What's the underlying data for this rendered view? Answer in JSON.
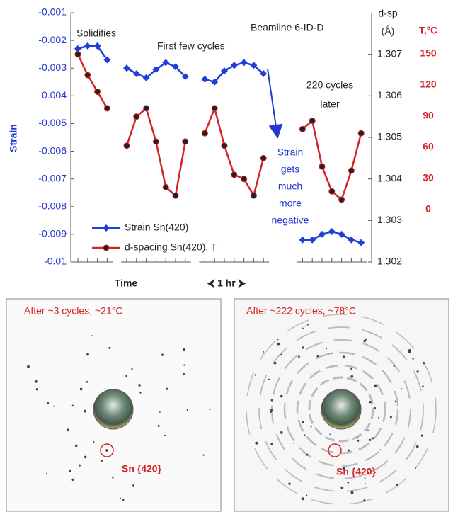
{
  "chart_data": {
    "type": "line",
    "categories": [
      null,
      null,
      null,
      null,
      null,
      null,
      null,
      null,
      null,
      null,
      null,
      null,
      null,
      null,
      null,
      null,
      null,
      null,
      null,
      null,
      null,
      null,
      null,
      null,
      null,
      null,
      null,
      null,
      null,
      null
    ],
    "series": [
      {
        "name": "Strain Sn(420)",
        "color": "#1f3fd6",
        "marker": "diamond",
        "values": [
          -0.0023,
          -0.0022,
          -0.0022,
          -0.0027,
          null,
          -0.003,
          -0.0032,
          -0.00335,
          -0.00305,
          -0.0028,
          -0.00295,
          -0.0033,
          null,
          -0.0034,
          -0.0035,
          -0.0031,
          -0.0029,
          -0.0028,
          -0.0029,
          -0.0032,
          null,
          null,
          null,
          -0.0092,
          -0.0092,
          -0.009,
          -0.0089,
          -0.009,
          -0.0092,
          -0.0093
        ]
      },
      {
        "name": "d-spacing Sn(420), T",
        "color": "#d42323",
        "marker": "circle",
        "axis": "y2",
        "values": [
          1.307,
          1.3065,
          1.3061,
          1.3057,
          null,
          1.3048,
          1.3055,
          1.3057,
          1.3049,
          1.3038,
          1.3036,
          1.3049,
          null,
          1.3051,
          1.3057,
          1.3048,
          1.3041,
          1.304,
          1.3036,
          1.3045,
          null,
          null,
          null,
          1.3052,
          1.3054,
          1.3043,
          1.3037,
          1.3035,
          1.3042,
          1.3051
        ]
      }
    ],
    "ylabel": "Strain",
    "ylim": [
      -0.01,
      -0.001
    ],
    "yticks": [
      -0.001,
      -0.002,
      -0.003,
      -0.004,
      -0.005,
      -0.006,
      -0.007,
      -0.008,
      -0.009,
      -0.01
    ],
    "y2label": [
      "d-sp",
      "(Å)"
    ],
    "y2lim": [
      1.302,
      1.308
    ],
    "y2ticks": [
      1.307,
      1.306,
      1.305,
      1.304,
      1.303,
      1.302
    ],
    "y3label": "T,°C",
    "y3lim": [
      -50.5,
      189.5
    ],
    "y3ticks": [
      150,
      120,
      90,
      60,
      30,
      0
    ],
    "xlabel": "Time",
    "scale_note": "⮜ 1 hr ⮞",
    "annotations": [
      {
        "lines": [
          "Solidifies"
        ]
      },
      {
        "lines": [
          "First few cycles"
        ]
      },
      {
        "lines": [
          "Beamline 6-ID-D"
        ]
      },
      {
        "lines": [
          "220 cycles",
          "later"
        ]
      },
      {
        "lines": [
          "Strain",
          "gets",
          "much",
          "more",
          "negative"
        ]
      }
    ],
    "legend": "lower-left",
    "grid": false
  },
  "panels": [
    {
      "title": "After ~3 cycles, ~21°C",
      "label": "Sn {420}"
    },
    {
      "title": "After ~222 cycles, ~78°C",
      "label": "Sn {420}"
    }
  ]
}
